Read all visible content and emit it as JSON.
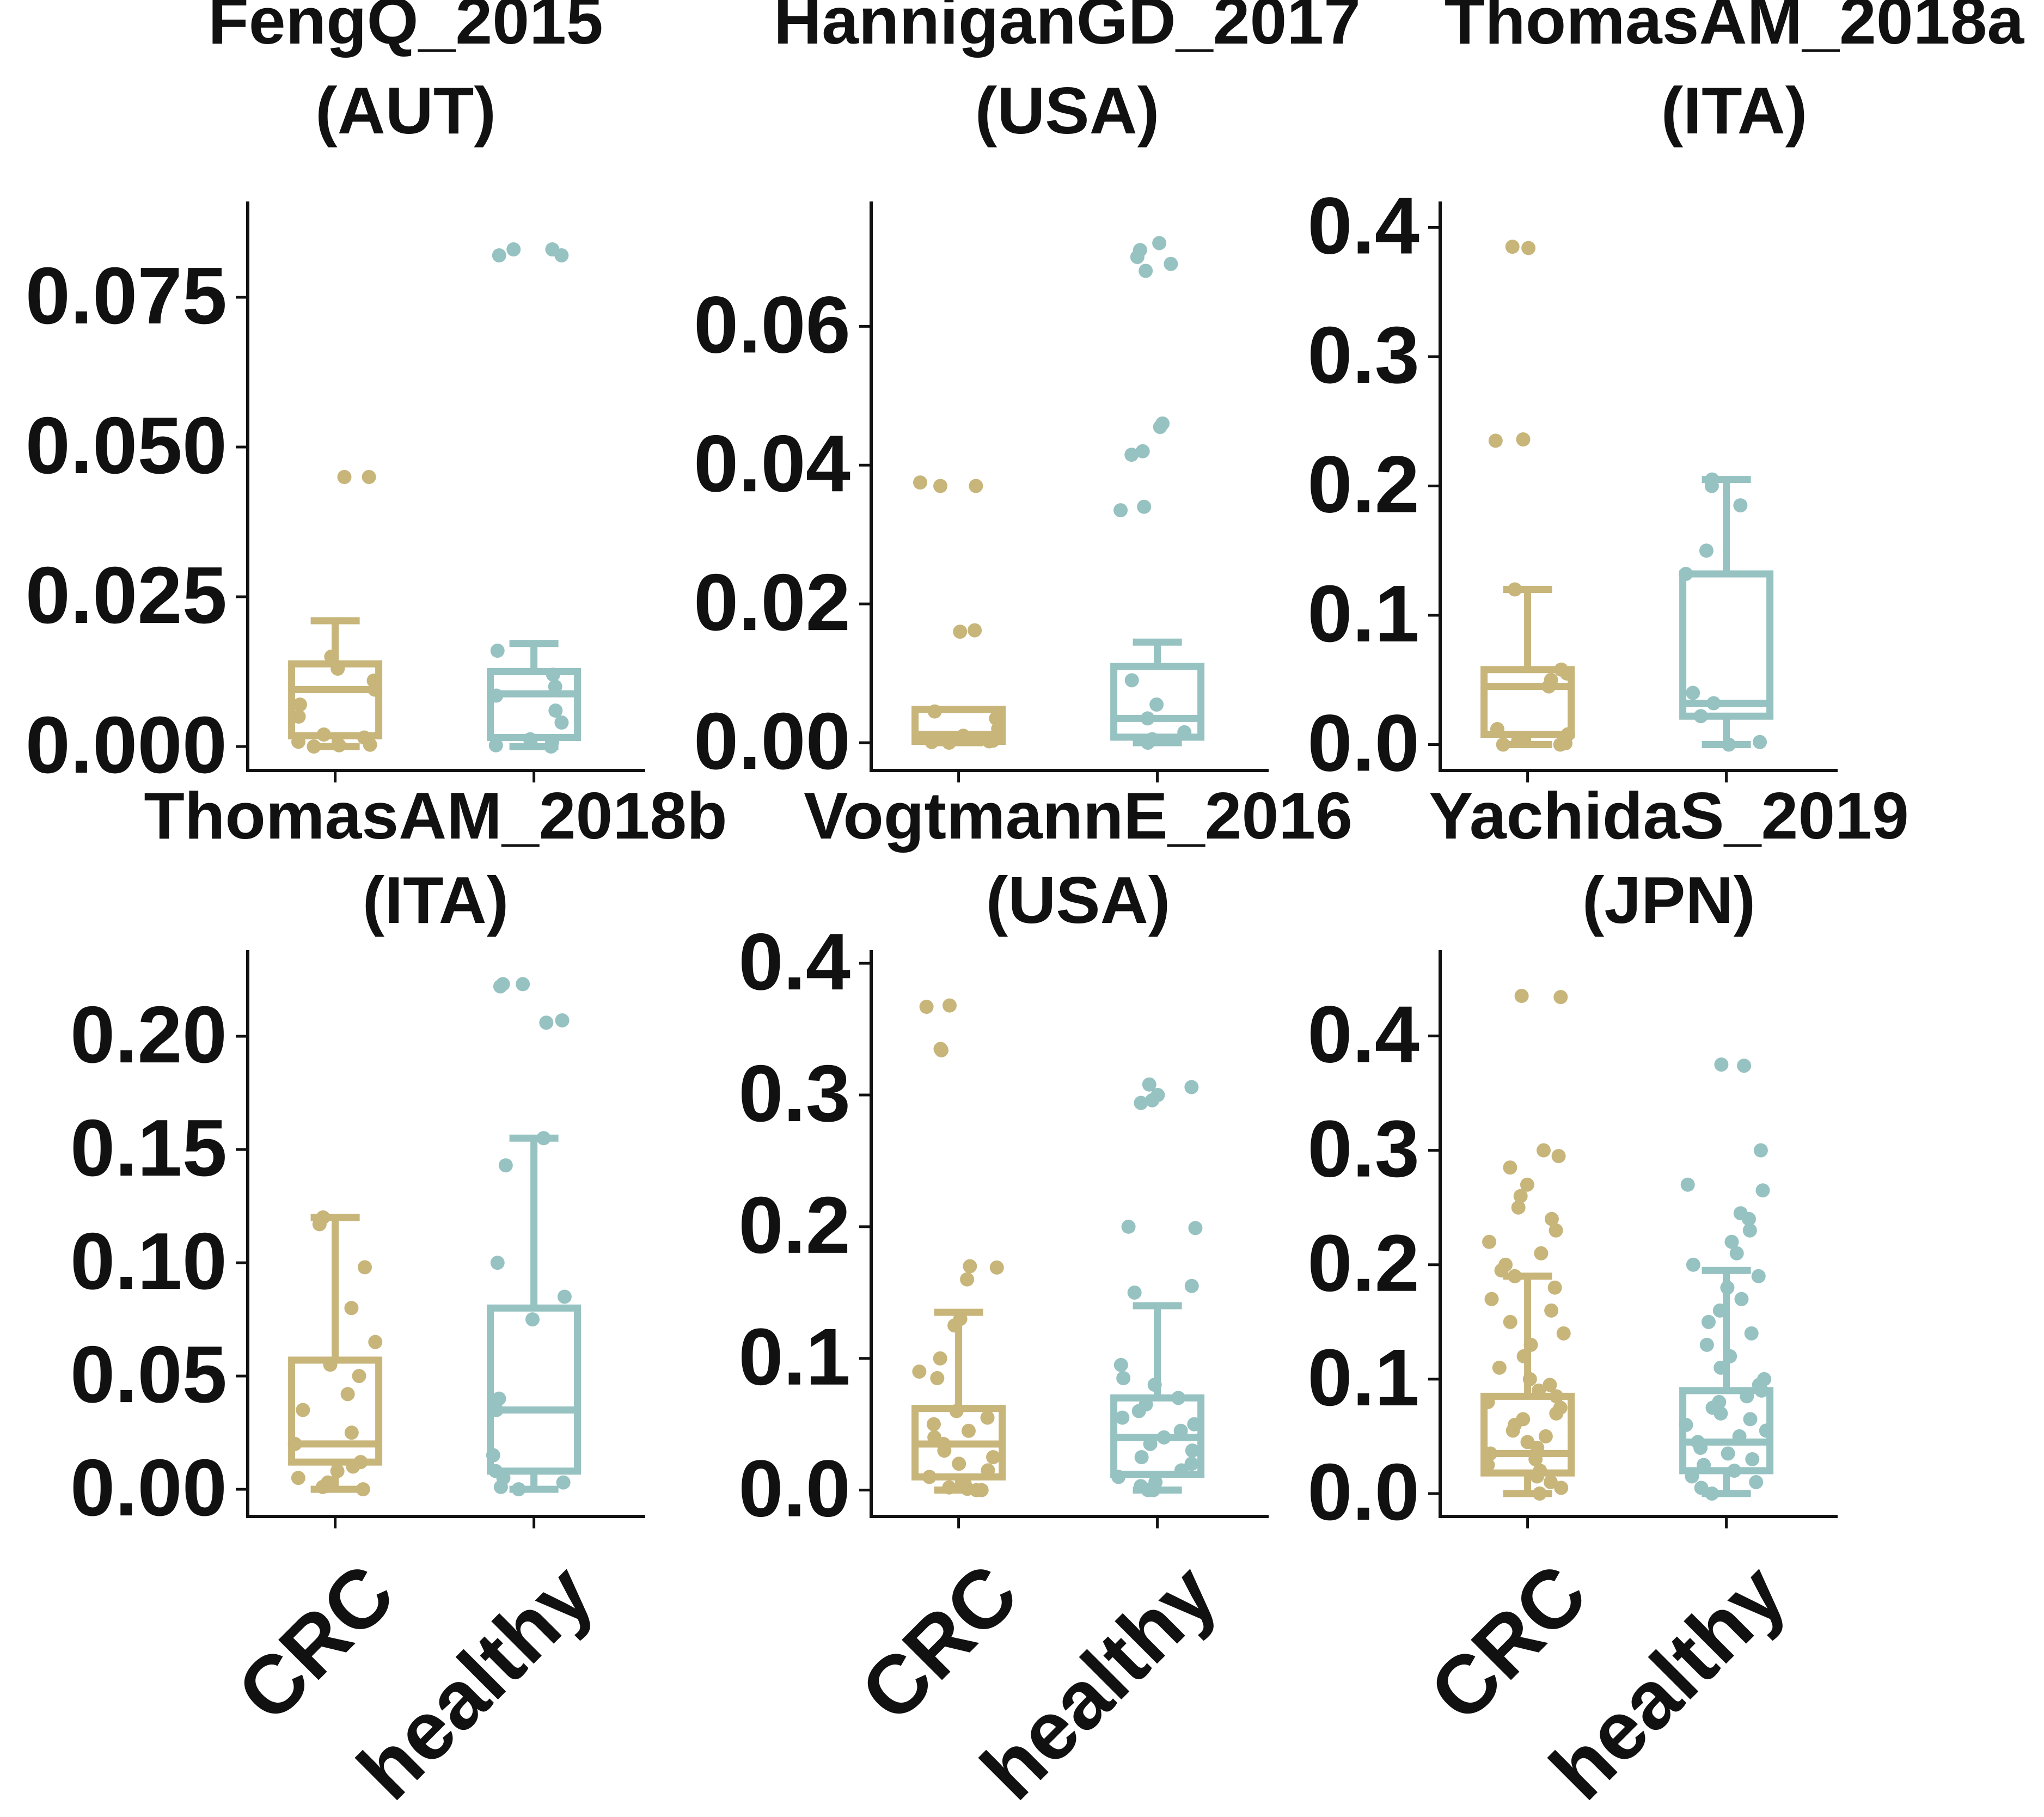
{
  "colors": {
    "crc": "#C7B57A",
    "healthy": "#96C2C1",
    "axis": "#111111",
    "text": "#111111"
  },
  "chart_data": [
    {
      "type": "box",
      "title_line1": "FengQ_2015",
      "title_line2": "(AUT)",
      "categories": [
        "CRC",
        "healthy"
      ],
      "ylim": [
        -0.004,
        0.091
      ],
      "yticks": [
        0.0,
        0.025,
        0.05,
        0.075
      ],
      "ytick_labels": [
        "0.000",
        "0.025",
        "0.050",
        "0.075"
      ],
      "show_xlabels": false,
      "boxes": [
        {
          "name": "CRC",
          "whisker_low": 0.0,
          "q1": 0.0018,
          "median": 0.0095,
          "q3": 0.0138,
          "whisker_high": 0.021
        },
        {
          "name": "healthy",
          "whisker_low": 0.0,
          "q1": 0.0015,
          "median": 0.0088,
          "q3": 0.0125,
          "whisker_high": 0.0172
        }
      ],
      "points": [
        [
          0.0,
          0.045,
          0.045,
          0.0003,
          0.0008,
          0.0015,
          0.002,
          0.005,
          0.007,
          0.0095,
          0.011,
          0.013,
          0.015,
          0.0002
        ],
        [
          0.083,
          0.083,
          0.082,
          0.082,
          0.0,
          0.0002,
          0.0008,
          0.0012,
          0.004,
          0.006,
          0.0085,
          0.01,
          0.012,
          0.016
        ]
      ]
    },
    {
      "type": "box",
      "title_line1": "HanniganGD_2017",
      "title_line2": "(USA)",
      "categories": [
        "CRC",
        "healthy"
      ],
      "ylim": [
        -0.004,
        0.078
      ],
      "yticks": [
        0.0,
        0.02,
        0.04,
        0.06
      ],
      "ytick_labels": [
        "0.00",
        "0.02",
        "0.04",
        "0.06"
      ],
      "show_xlabels": false,
      "boxes": [
        {
          "name": "CRC",
          "whisker_low": 0.0,
          "q1": 0.0002,
          "median": 0.0012,
          "q3": 0.0048,
          "whisker_high": 0.0048
        },
        {
          "name": "healthy",
          "whisker_low": 0.0,
          "q1": 0.0008,
          "median": 0.0035,
          "q3": 0.011,
          "whisker_high": 0.0145
        }
      ],
      "points": [
        [
          0.037,
          0.037,
          0.0375,
          0.016,
          0.0162,
          0.0,
          0.0001,
          0.0003,
          0.0005,
          0.001,
          0.002,
          0.0035,
          0.0045,
          0.0002
        ],
        [
          0.071,
          0.072,
          0.07,
          0.069,
          0.068,
          0.046,
          0.0455,
          0.042,
          0.0415,
          0.034,
          0.0335,
          0.009,
          0.0055,
          0.0035,
          0.0015,
          0.0005,
          0.0
        ]
      ]
    },
    {
      "type": "box",
      "title_line1": "ThomasAM_2018a",
      "title_line2": "(ITA)",
      "categories": [
        "CRC",
        "healthy"
      ],
      "ylim": [
        -0.02,
        0.42
      ],
      "yticks": [
        0.0,
        0.1,
        0.2,
        0.3,
        0.4
      ],
      "ytick_labels": [
        "0.0",
        "0.1",
        "0.2",
        "0.3",
        "0.4"
      ],
      "show_xlabels": false,
      "boxes": [
        {
          "name": "CRC",
          "whisker_low": 0.0,
          "q1": 0.008,
          "median": 0.045,
          "q3": 0.058,
          "whisker_high": 0.12
        },
        {
          "name": "healthy",
          "whisker_low": 0.0,
          "q1": 0.022,
          "median": 0.032,
          "q3": 0.132,
          "whisker_high": 0.205
        }
      ],
      "points": [
        [
          0.385,
          0.384,
          0.236,
          0.235,
          0.12,
          0.058,
          0.055,
          0.05,
          0.045,
          0.012,
          0.008,
          0.003,
          0.001,
          0.0,
          0.0
        ],
        [
          0.205,
          0.2,
          0.185,
          0.15,
          0.132,
          0.04,
          0.032,
          0.022,
          0.0,
          0.002
        ]
      ]
    },
    {
      "type": "box",
      "title_line1": "ThomasAM_2018b",
      "title_line2": "(ITA)",
      "categories": [
        "CRC",
        "healthy"
      ],
      "ylim": [
        -0.012,
        0.238
      ],
      "yticks": [
        0.0,
        0.05,
        0.1,
        0.15,
        0.2
      ],
      "ytick_labels": [
        "0.00",
        "0.05",
        "0.10",
        "0.15",
        "0.20"
      ],
      "show_xlabels": true,
      "boxes": [
        {
          "name": "CRC",
          "whisker_low": 0.0,
          "q1": 0.012,
          "median": 0.02,
          "q3": 0.057,
          "whisker_high": 0.12
        },
        {
          "name": "healthy",
          "whisker_low": 0.0,
          "q1": 0.008,
          "median": 0.035,
          "q3": 0.08,
          "whisker_high": 0.155
        }
      ],
      "points": [
        [
          0.12,
          0.117,
          0.098,
          0.08,
          0.065,
          0.055,
          0.05,
          0.042,
          0.035,
          0.025,
          0.02,
          0.012,
          0.01,
          0.008,
          0.005,
          0.003,
          0.001,
          0.0
        ],
        [
          0.223,
          0.223,
          0.222,
          0.207,
          0.206,
          0.155,
          0.143,
          0.1,
          0.085,
          0.075,
          0.04,
          0.035,
          0.015,
          0.008,
          0.005,
          0.003,
          0.001,
          0.0
        ]
      ]
    },
    {
      "type": "box",
      "title_line1": "VogtmannE_2016",
      "title_line2": "(USA)",
      "categories": [
        "CRC",
        "healthy"
      ],
      "ylim": [
        -0.02,
        0.41
      ],
      "yticks": [
        0.0,
        0.1,
        0.2,
        0.3,
        0.4
      ],
      "ytick_labels": [
        "0.0",
        "0.1",
        "0.2",
        "0.3",
        "0.4"
      ],
      "show_xlabels": true,
      "boxes": [
        {
          "name": "CRC",
          "whisker_low": 0.0,
          "q1": 0.01,
          "median": 0.035,
          "q3": 0.062,
          "whisker_high": 0.135
        },
        {
          "name": "healthy",
          "whisker_low": 0.0,
          "q1": 0.012,
          "median": 0.04,
          "q3": 0.07,
          "whisker_high": 0.14
        }
      ],
      "points": [
        [
          0.368,
          0.367,
          0.335,
          0.334,
          0.17,
          0.169,
          0.16,
          0.13,
          0.125,
          0.1,
          0.09,
          0.085,
          0.06,
          0.055,
          0.05,
          0.045,
          0.04,
          0.035,
          0.03,
          0.025,
          0.02,
          0.015,
          0.01,
          0.005,
          0.002,
          0.0,
          0.0,
          0.001
        ],
        [
          0.308,
          0.306,
          0.3,
          0.296,
          0.294,
          0.2,
          0.199,
          0.155,
          0.15,
          0.095,
          0.085,
          0.08,
          0.07,
          0.065,
          0.06,
          0.055,
          0.05,
          0.045,
          0.04,
          0.035,
          0.03,
          0.025,
          0.02,
          0.015,
          0.01,
          0.006,
          0.003,
          0.0,
          0.0
        ]
      ]
    },
    {
      "type": "box",
      "title_line1": "YachidaS_2019",
      "title_line2": "(JPN)",
      "categories": [
        "CRC",
        "healthy"
      ],
      "ylim": [
        -0.02,
        0.475
      ],
      "yticks": [
        0.0,
        0.1,
        0.2,
        0.3,
        0.4
      ],
      "ytick_labels": [
        "0.0",
        "0.1",
        "0.2",
        "0.3",
        "0.4"
      ],
      "show_xlabels": true,
      "boxes": [
        {
          "name": "CRC",
          "whisker_low": 0.0,
          "q1": 0.018,
          "median": 0.035,
          "q3": 0.085,
          "whisker_high": 0.19
        },
        {
          "name": "healthy",
          "whisker_low": 0.0,
          "q1": 0.02,
          "median": 0.045,
          "q3": 0.09,
          "whisker_high": 0.195
        }
      ],
      "points": [
        [
          0.435,
          0.434,
          0.3,
          0.295,
          0.285,
          0.27,
          0.26,
          0.25,
          0.24,
          0.23,
          0.22,
          0.21,
          0.2,
          0.195,
          0.19,
          0.18,
          0.17,
          0.16,
          0.15,
          0.14,
          0.13,
          0.12,
          0.11,
          0.1,
          0.095,
          0.09,
          0.085,
          0.08,
          0.075,
          0.07,
          0.065,
          0.06,
          0.055,
          0.05,
          0.045,
          0.04,
          0.035,
          0.03,
          0.025,
          0.02,
          0.015,
          0.01,
          0.005,
          0.0
        ],
        [
          0.375,
          0.374,
          0.3,
          0.27,
          0.265,
          0.245,
          0.24,
          0.23,
          0.22,
          0.21,
          0.2,
          0.19,
          0.18,
          0.17,
          0.16,
          0.15,
          0.14,
          0.13,
          0.12,
          0.11,
          0.1,
          0.095,
          0.09,
          0.085,
          0.08,
          0.075,
          0.07,
          0.065,
          0.06,
          0.055,
          0.05,
          0.045,
          0.04,
          0.035,
          0.03,
          0.025,
          0.02,
          0.015,
          0.01,
          0.005,
          0.0
        ]
      ]
    }
  ]
}
